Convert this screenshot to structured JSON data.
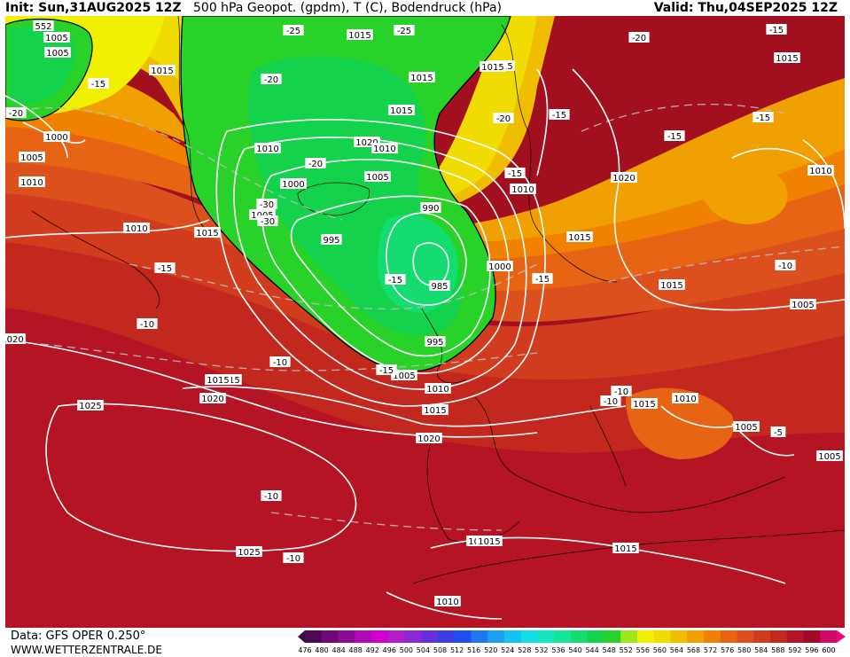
{
  "header": {
    "init": "Init: Sun,31AUG2025 12Z",
    "title": "500 hPa Geopot. (gpdm), T (C), Bodendruck (hPa)",
    "valid": "Valid: Thu,04SEP2025 12Z"
  },
  "footer": {
    "source": "Data: GFS OPER 0.250°",
    "site": "WWW.WETTERZENTRALE.DE"
  },
  "legend": {
    "values": [
      "476",
      "480",
      "484",
      "488",
      "492",
      "496",
      "500",
      "504",
      "508",
      "512",
      "516",
      "520",
      "524",
      "528",
      "532",
      "536",
      "540",
      "544",
      "548",
      "552",
      "556",
      "560",
      "564",
      "568",
      "572",
      "576",
      "580",
      "584",
      "588",
      "592",
      "596",
      "600"
    ],
    "colors": [
      "#4b0a52",
      "#6e0a78",
      "#8c0a96",
      "#b00ab4",
      "#d000d0",
      "#b41ec8",
      "#8c28d2",
      "#6432dc",
      "#3c3ce6",
      "#1e50f0",
      "#1e78f0",
      "#1ea0f0",
      "#14c3f0",
      "#14dce6",
      "#14e6be",
      "#14e696",
      "#14dc6e",
      "#14d24b",
      "#28d228",
      "#a0e61e",
      "#f0f000",
      "#f0dc00",
      "#f0be00",
      "#f0a000",
      "#f08200",
      "#e66414",
      "#dc501e",
      "#d23c1e",
      "#c3281e",
      "#b41423",
      "#a00a28",
      "#d20a64"
    ]
  },
  "pressure_labels": [
    "552",
    "1005",
    "1015",
    "1015",
    "1015",
    "1015",
    "1015",
    "1015",
    "1015",
    "1015",
    "1015",
    "1015",
    "1015",
    "1015",
    "1015",
    "1015",
    "1015",
    "1015",
    "1020",
    "1020",
    "1020",
    "1020",
    "1020",
    "1000",
    "1000",
    "1005",
    "1005",
    "1005",
    "1005",
    "1005",
    "1005",
    "1005",
    "1005",
    "1010",
    "1010",
    "1010",
    "1010",
    "1010",
    "1010",
    "1010",
    "1010",
    "1010",
    "990",
    "995",
    "995",
    "985",
    "1000",
    "1025",
    "1025",
    "1015"
  ],
  "temperature_labels": [
    "-25",
    "-25",
    "-20",
    "-20",
    "-20",
    "-20",
    "-20",
    "-15",
    "-15",
    "-15",
    "-15",
    "-15",
    "-15",
    "-15",
    "-15",
    "-15",
    "-15",
    "-30",
    "-30",
    "-10",
    "-10",
    "-10",
    "-10",
    "-10",
    "-10",
    "-10",
    "-5"
  ]
}
